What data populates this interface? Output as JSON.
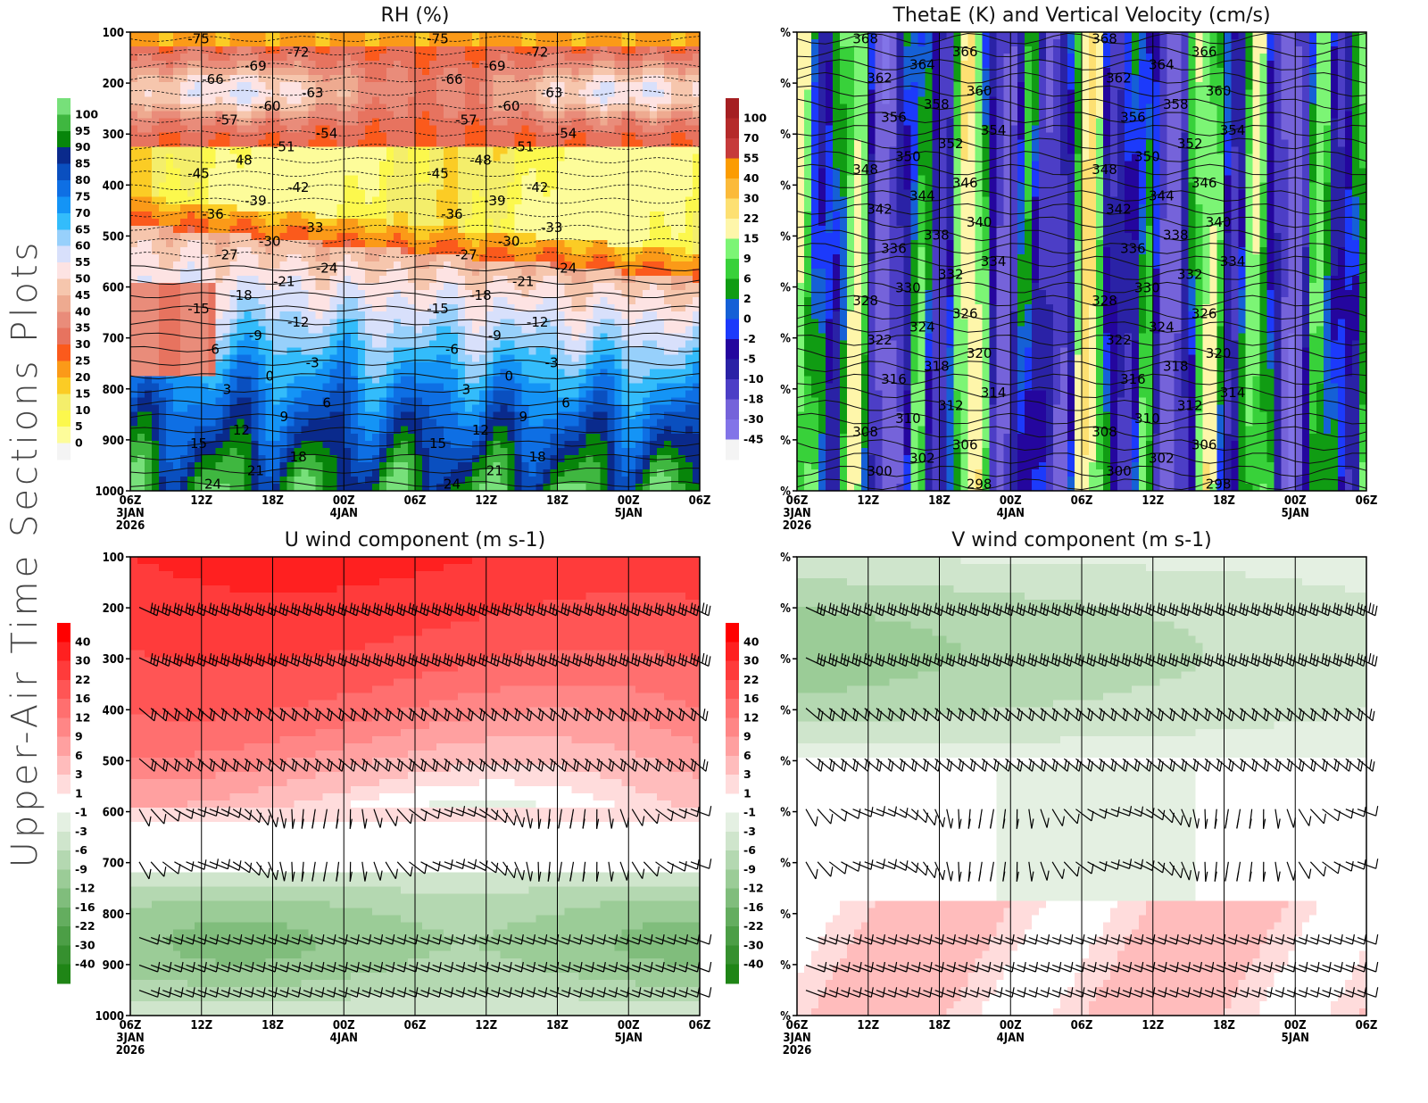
{
  "page": {
    "side_title": "Upper-Air Time Sections Plots"
  },
  "time_axis": {
    "ticks": [
      "06Z",
      "12Z",
      "18Z",
      "00Z",
      "06Z",
      "12Z",
      "18Z",
      "00Z",
      "06Z"
    ],
    "day_labels": [
      {
        "index": 0,
        "label": "3JAN"
      },
      {
        "index": 3,
        "label": "4JAN"
      },
      {
        "index": 7,
        "label": "5JAN"
      }
    ],
    "year_label": "2026"
  },
  "chart_data": [
    {
      "id": "rh",
      "type": "heatmap",
      "title": "RH (%)",
      "xlabel": "",
      "ylabel": "",
      "x_categories": [
        "06Z 3JAN",
        "12Z",
        "18Z",
        "00Z 4JAN",
        "06Z",
        "12Z",
        "18Z",
        "00Z 5JAN",
        "06Z"
      ],
      "y_ticks": [
        "100",
        "200",
        "300",
        "400",
        "500",
        "600",
        "700",
        "800",
        "900",
        "1000"
      ],
      "ylim": [
        100,
        1000
      ],
      "y_inverted": true,
      "grid": "vertical lines at each x tick",
      "colorbar": {
        "placement": "left",
        "levels": [
          "100",
          "95",
          "90",
          "85",
          "80",
          "75",
          "70",
          "65",
          "60",
          "55",
          "50",
          "45",
          "40",
          "35",
          "30",
          "25",
          "20",
          "15",
          "10",
          "5",
          "0"
        ],
        "colors": [
          "#77e07a",
          "#3fb740",
          "#07850a",
          "#0a2a8c",
          "#0a4fbf",
          "#0e6fe4",
          "#1494f6",
          "#33bcfb",
          "#97d0fb",
          "#d8e0fb",
          "#fde3e3",
          "#f6c6ad",
          "#eeaa90",
          "#e98c7a",
          "#e7735f",
          "#fb5a1c",
          "#fb9a18",
          "#fbcc25",
          "#f4ee6b",
          "#fcf84d",
          "#fdfc9a",
          "#f4f4f4"
        ]
      },
      "contour_overlay": {
        "variable": "temperature (C)",
        "labels": [
          "-75",
          "-72",
          "-69",
          "-66",
          "-63",
          "-60",
          "-57",
          "-54",
          "-51",
          "-48",
          "-45",
          "-42",
          "-39",
          "-36",
          "-33",
          "-30",
          "-27",
          "-24",
          "-21",
          "-18",
          "-15",
          "-12",
          "-9",
          "-6",
          "-3",
          "0",
          "3",
          "6",
          "9",
          "12",
          "15",
          "18",
          "21",
          "24"
        ]
      }
    },
    {
      "id": "thetae",
      "type": "heatmap",
      "title": "ThetaE (K) and Vertical Velocity (cm/s)",
      "xlabel": "",
      "ylabel": "",
      "x_categories": [
        "06Z 3JAN",
        "12Z",
        "18Z",
        "00Z 4JAN",
        "06Z",
        "12Z",
        "18Z",
        "00Z 5JAN",
        "06Z"
      ],
      "y_ticks": [
        "%",
        "%",
        "%",
        "%",
        "%",
        "%",
        "%",
        "%",
        "%",
        "%"
      ],
      "grid": "vertical lines at each x tick",
      "colorbar": {
        "placement": "left",
        "levels": [
          "100",
          "70",
          "55",
          "40",
          "30",
          "22",
          "15",
          "9",
          "6",
          "2",
          "0",
          "-2",
          "-5",
          "-10",
          "-18",
          "-30",
          "-45"
        ],
        "colors": [
          "#a51f22",
          "#b52a2a",
          "#c63b3b",
          "#fb9c02",
          "#fbba3a",
          "#fde072",
          "#fef6aa",
          "#7cf575",
          "#38d13a",
          "#109c13",
          "#1560d6",
          "#1c3afb",
          "#24069e",
          "#2a22a6",
          "#4c3ec6",
          "#7563da",
          "#8274e8",
          "#f4f4f4"
        ]
      },
      "contour_overlay": {
        "variable": "ThetaE (K)",
        "labels": [
          "368",
          "366",
          "364",
          "362",
          "360",
          "358",
          "356",
          "354",
          "352",
          "350",
          "348",
          "346",
          "344",
          "342",
          "340",
          "338",
          "336",
          "334",
          "332",
          "330",
          "328",
          "326",
          "324",
          "322",
          "320",
          "318",
          "316",
          "314",
          "312",
          "310",
          "308",
          "306",
          "302",
          "300",
          "298"
        ]
      }
    },
    {
      "id": "uwind",
      "type": "heatmap",
      "title": "U wind component (m s-1)",
      "xlabel": "",
      "ylabel": "",
      "x_categories": [
        "06Z 3JAN",
        "12Z",
        "18Z",
        "00Z 4JAN",
        "06Z",
        "12Z",
        "18Z",
        "00Z 5JAN",
        "06Z"
      ],
      "y_ticks": [
        "100",
        "200",
        "300",
        "400",
        "500",
        "600",
        "700",
        "800",
        "900",
        "1000"
      ],
      "ylim": [
        100,
        1000
      ],
      "y_inverted": true,
      "grid": "vertical lines at each x tick",
      "overlay": "wind barbs at 200, 300, 400, 500, 600, 700, 850, 900, 950 hPa",
      "colorbar": {
        "placement": "left",
        "levels": [
          "40",
          "30",
          "22",
          "16",
          "12",
          "9",
          "6",
          "3",
          "1",
          "-1",
          "-3",
          "-6",
          "-9",
          "-12",
          "-16",
          "-22",
          "-30",
          "-40"
        ],
        "colors": [
          "#ff0000",
          "#ff2020",
          "#ff3b3b",
          "#ff5555",
          "#ff6f6f",
          "#ff8686",
          "#ffa0a0",
          "#ffbcbc",
          "#ffdcdc",
          "#ffffff",
          "#e4f0e2",
          "#cfe5cc",
          "#b4d8b1",
          "#9bcc97",
          "#80bd7c",
          "#64ad5f",
          "#4c9e46",
          "#36902f",
          "#1f8516"
        ]
      }
    },
    {
      "id": "vwind",
      "type": "heatmap",
      "title": "V wind component (m s-1)",
      "xlabel": "",
      "ylabel": "",
      "x_categories": [
        "06Z 3JAN",
        "12Z",
        "18Z",
        "00Z 4JAN",
        "06Z",
        "12Z",
        "18Z",
        "00Z 5JAN",
        "06Z"
      ],
      "y_ticks": [
        "%",
        "%",
        "%",
        "%",
        "%",
        "%",
        "%",
        "%",
        "%",
        "%"
      ],
      "grid": "vertical lines at each x tick",
      "overlay": "wind barbs at 200, 300, 400, 500, 600, 700, 850, 900, 950 hPa",
      "colorbar": {
        "placement": "left",
        "levels": [
          "40",
          "30",
          "22",
          "16",
          "12",
          "9",
          "6",
          "3",
          "1",
          "-1",
          "-3",
          "-6",
          "-9",
          "-12",
          "-16",
          "-22",
          "-30",
          "-40"
        ],
        "colors": [
          "#ff0000",
          "#ff2020",
          "#ff3b3b",
          "#ff5555",
          "#ff6f6f",
          "#ff8686",
          "#ffa0a0",
          "#ffbcbc",
          "#ffdcdc",
          "#ffffff",
          "#e4f0e2",
          "#cfe5cc",
          "#b4d8b1",
          "#9bcc97",
          "#80bd7c",
          "#64ad5f",
          "#4c9e46",
          "#36902f",
          "#1f8516"
        ]
      }
    }
  ]
}
